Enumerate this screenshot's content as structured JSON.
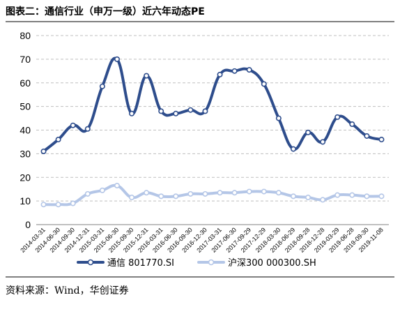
{
  "header": {
    "title": "图表二：通信行业（申万一级）近六年动态PE"
  },
  "footer": {
    "source": "资料来源：Wind，华创证券"
  },
  "chart_data": {
    "type": "line",
    "title": "图表二：通信行业（申万一级）近六年动态PE",
    "xlabel": "",
    "ylabel": "",
    "ylim": [
      0,
      80
    ],
    "yticks": [
      0,
      10,
      20,
      30,
      40,
      50,
      60,
      70,
      80
    ],
    "grid": "horizontal-dashed",
    "legend": "bottom",
    "categories": [
      "2014-03-31",
      "2014-06-30",
      "2014-09-30",
      "2014-12-31",
      "2015-03-31",
      "2015-06-30",
      "2015-09-30",
      "2015-12-31",
      "2016-03-31",
      "2016-06-30",
      "2016-09-30",
      "2016-12-30",
      "2017-03-31",
      "2017-06-30",
      "2017-09-29",
      "2017-12-29",
      "2018-03-30",
      "2018-06-29",
      "2018-09-28",
      "2018-12-28",
      "2019-03-29",
      "2019-06-28",
      "2019-09-30",
      "2019-11-08"
    ],
    "series": [
      {
        "name": "通信 801770.SI",
        "color": "#2e4d8c",
        "values": [
          31,
          36,
          42,
          40.5,
          58.5,
          70,
          47,
          63,
          48,
          47,
          48.5,
          48,
          63.5,
          65,
          65.5,
          59.5,
          45,
          32,
          39,
          35,
          45.5,
          42.5,
          37.5,
          36
        ]
      },
      {
        "name": "沪深300 000300.SH",
        "color": "#b4c6e7",
        "values": [
          8.5,
          8.5,
          9,
          13,
          14.5,
          16.5,
          11.5,
          13.5,
          12,
          12,
          13,
          13,
          13.5,
          13.5,
          14,
          14,
          13.5,
          12,
          11.5,
          10.5,
          12.5,
          12.5,
          12,
          12
        ]
      }
    ]
  }
}
